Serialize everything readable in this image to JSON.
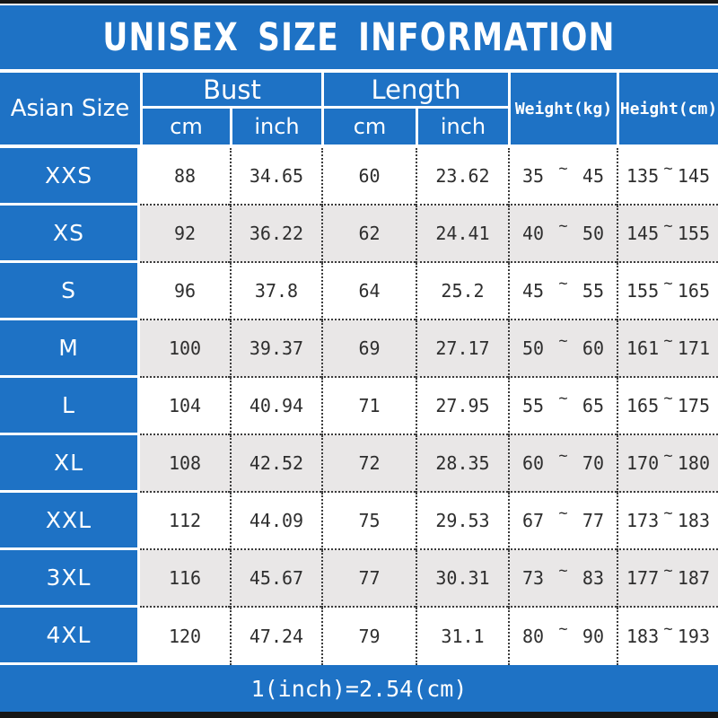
{
  "title": "UNISEX SIZE INFORMATION",
  "footer_note": "1(inch)=2.54(cm)",
  "range_sep": "~",
  "colors": {
    "blue": "#1e72c5",
    "row_white": "#ffffff",
    "row_alt_gray": "#e9e7e7",
    "border_black": "#161616",
    "dotted_line": "#3c3c3c",
    "text_white": "#ffffff",
    "text_dark": "#2e2e2e"
  },
  "header": {
    "size_col": "Asian Size",
    "bust": "Bust",
    "length": "Length",
    "weight": "Weight(kg)",
    "height": "Height(cm)",
    "cm": "cm",
    "inch": "inch"
  },
  "rows": [
    {
      "size": "XXS",
      "bust_cm": "88",
      "bust_in": "34.65",
      "length_cm": "60",
      "length_in": "23.62",
      "weight_min": "35",
      "weight_max": "45",
      "height_min": "135",
      "height_max": "145"
    },
    {
      "size": "XS",
      "bust_cm": "92",
      "bust_in": "36.22",
      "length_cm": "62",
      "length_in": "24.41",
      "weight_min": "40",
      "weight_max": "50",
      "height_min": "145",
      "height_max": "155"
    },
    {
      "size": "S",
      "bust_cm": "96",
      "bust_in": "37.8",
      "length_cm": "64",
      "length_in": "25.2",
      "weight_min": "45",
      "weight_max": "55",
      "height_min": "155",
      "height_max": "165"
    },
    {
      "size": "M",
      "bust_cm": "100",
      "bust_in": "39.37",
      "length_cm": "69",
      "length_in": "27.17",
      "weight_min": "50",
      "weight_max": "60",
      "height_min": "161",
      "height_max": "171"
    },
    {
      "size": "L",
      "bust_cm": "104",
      "bust_in": "40.94",
      "length_cm": "71",
      "length_in": "27.95",
      "weight_min": "55",
      "weight_max": "65",
      "height_min": "165",
      "height_max": "175"
    },
    {
      "size": "XL",
      "bust_cm": "108",
      "bust_in": "42.52",
      "length_cm": "72",
      "length_in": "28.35",
      "weight_min": "60",
      "weight_max": "70",
      "height_min": "170",
      "height_max": "180"
    },
    {
      "size": "XXL",
      "bust_cm": "112",
      "bust_in": "44.09",
      "length_cm": "75",
      "length_in": "29.53",
      "weight_min": "67",
      "weight_max": "77",
      "height_min": "173",
      "height_max": "183"
    },
    {
      "size": "3XL",
      "bust_cm": "116",
      "bust_in": "45.67",
      "length_cm": "77",
      "length_in": "30.31",
      "weight_min": "73",
      "weight_max": "83",
      "height_min": "177",
      "height_max": "187"
    },
    {
      "size": "4XL",
      "bust_cm": "120",
      "bust_in": "47.24",
      "length_cm": "79",
      "length_in": "31.1",
      "weight_min": "80",
      "weight_max": "90",
      "height_min": "183",
      "height_max": "193"
    }
  ],
  "chart_data": {
    "type": "table",
    "title": "UNISEX SIZE INFORMATION",
    "columns": [
      "Asian Size",
      "Bust cm",
      "Bust inch",
      "Length cm",
      "Length inch",
      "Weight(kg)",
      "Height(cm)"
    ],
    "rows": [
      [
        "XXS",
        88,
        34.65,
        60,
        23.62,
        "35~45",
        "135~145"
      ],
      [
        "XS",
        92,
        36.22,
        62,
        24.41,
        "40~50",
        "145~155"
      ],
      [
        "S",
        96,
        37.8,
        64,
        25.2,
        "45~55",
        "155~165"
      ],
      [
        "M",
        100,
        39.37,
        69,
        27.17,
        "50~60",
        "161~171"
      ],
      [
        "L",
        104,
        40.94,
        71,
        27.95,
        "55~65",
        "165~175"
      ],
      [
        "XL",
        108,
        42.52,
        72,
        28.35,
        "60~70",
        "170~180"
      ],
      [
        "XXL",
        112,
        44.09,
        75,
        29.53,
        "67~77",
        "173~183"
      ],
      [
        "3XL",
        116,
        45.67,
        77,
        30.31,
        "73~83",
        "177~187"
      ],
      [
        "4XL",
        120,
        47.24,
        79,
        31.1,
        "80~90",
        "183~193"
      ]
    ],
    "note": "1(inch)=2.54(cm)",
    "layout": "grouped header: Bust(cm,inch), Length(cm,inch); Weight and Height span both header rows"
  }
}
